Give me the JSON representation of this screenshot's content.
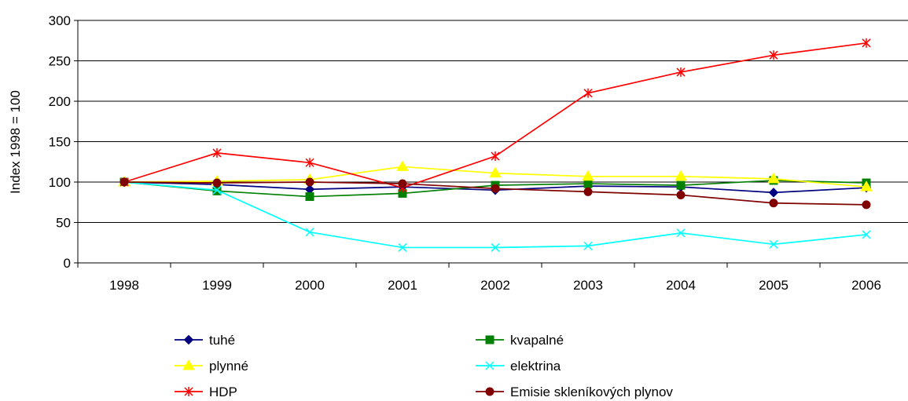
{
  "chart_data": {
    "type": "line",
    "title": "",
    "xlabel": "",
    "ylabel": "Index 1998 = 100",
    "ylim": [
      0,
      300
    ],
    "yticks": [
      0,
      50,
      100,
      150,
      200,
      250,
      300
    ],
    "categories": [
      "1998",
      "1999",
      "2000",
      "2001",
      "2002",
      "2003",
      "2004",
      "2005",
      "2006"
    ],
    "grid": "horizontal",
    "legend_position": "bottom",
    "series": [
      {
        "name": "tuhé",
        "color": "#000080",
        "marker": "diamond",
        "values": [
          100,
          97,
          91,
          94,
          90,
          95,
          94,
          87,
          93
        ]
      },
      {
        "name": "kvapalné",
        "color": "#008000",
        "marker": "square",
        "values": [
          100,
          89,
          82,
          86,
          96,
          98,
          96,
          102,
          99
        ]
      },
      {
        "name": "plynné",
        "color": "#ffff00",
        "marker": "triangle",
        "values": [
          100,
          101,
          103,
          119,
          111,
          107,
          107,
          104,
          94
        ]
      },
      {
        "name": "elektrina",
        "color": "#00ffff",
        "marker": "x",
        "values": [
          100,
          90,
          38,
          19,
          19,
          21,
          37,
          23,
          35
        ]
      },
      {
        "name": "HDP",
        "color": "#ff0000",
        "marker": "star",
        "values": [
          100,
          136,
          124,
          93,
          132,
          210,
          236,
          257,
          272
        ]
      },
      {
        "name": "Emisie skleníkových plynov",
        "color": "#800000",
        "marker": "circle",
        "values": [
          100,
          99,
          100,
          98,
          92,
          88,
          84,
          74,
          72
        ]
      }
    ]
  }
}
